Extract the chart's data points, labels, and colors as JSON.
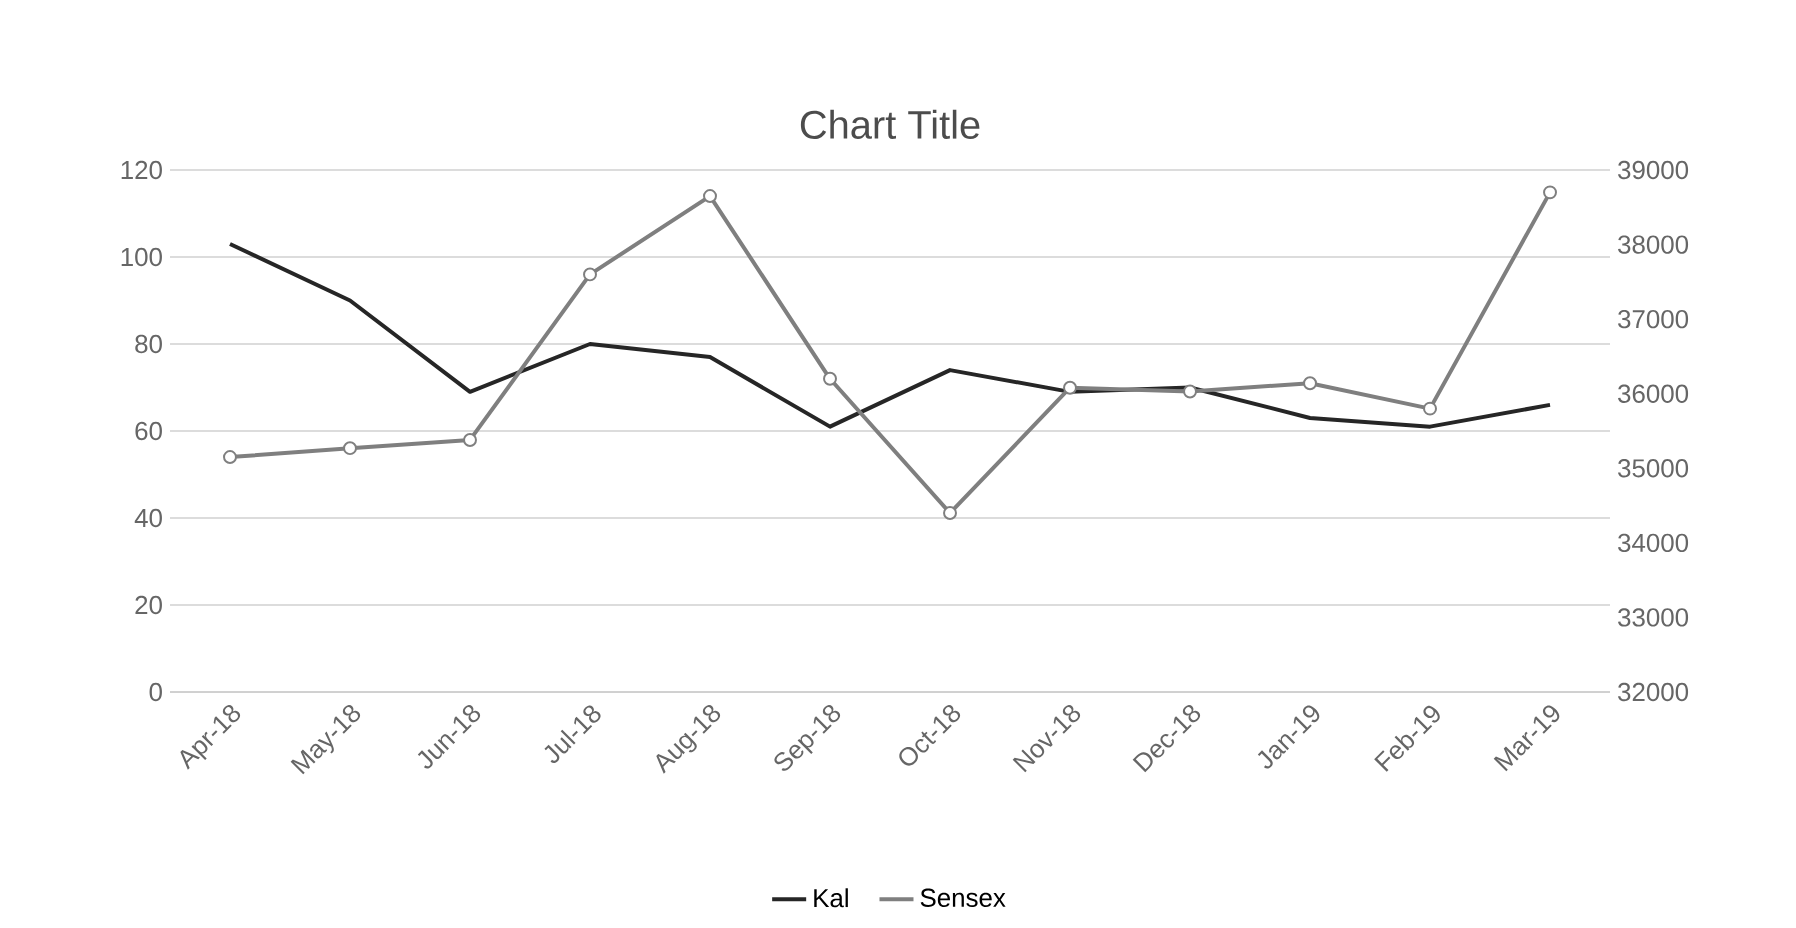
{
  "chart_data": {
    "type": "line",
    "title": "Chart Title",
    "categories": [
      "Apr-18",
      "May-18",
      "Jun-18",
      "Jul-18",
      "Aug-18",
      "Sep-18",
      "Oct-18",
      "Nov-18",
      "Dec-18",
      "Jan-19",
      "Feb-19",
      "Mar-19"
    ],
    "series": [
      {
        "name": "Kal",
        "color": "#262626",
        "values": [
          103,
          90,
          69,
          80,
          77,
          61,
          74,
          69,
          70,
          63,
          61,
          66
        ]
      },
      {
        "name": "Sensex",
        "color": "#7f7f7f",
        "axis": "y2",
        "marker": "circle",
        "values": [
          35150,
          35270,
          35380,
          37600,
          38650,
          36200,
          34400,
          36080,
          36030,
          36140,
          35800,
          38700
        ]
      }
    ],
    "ylim": [
      0,
      120
    ],
    "yticks": [
      0,
      20,
      40,
      60,
      80,
      100,
      120
    ],
    "y2lim": [
      32000,
      39000
    ],
    "y2ticks": [
      32000,
      33000,
      34000,
      35000,
      36000,
      37000,
      38000,
      39000
    ],
    "grid": "y",
    "legend": "bottom"
  }
}
